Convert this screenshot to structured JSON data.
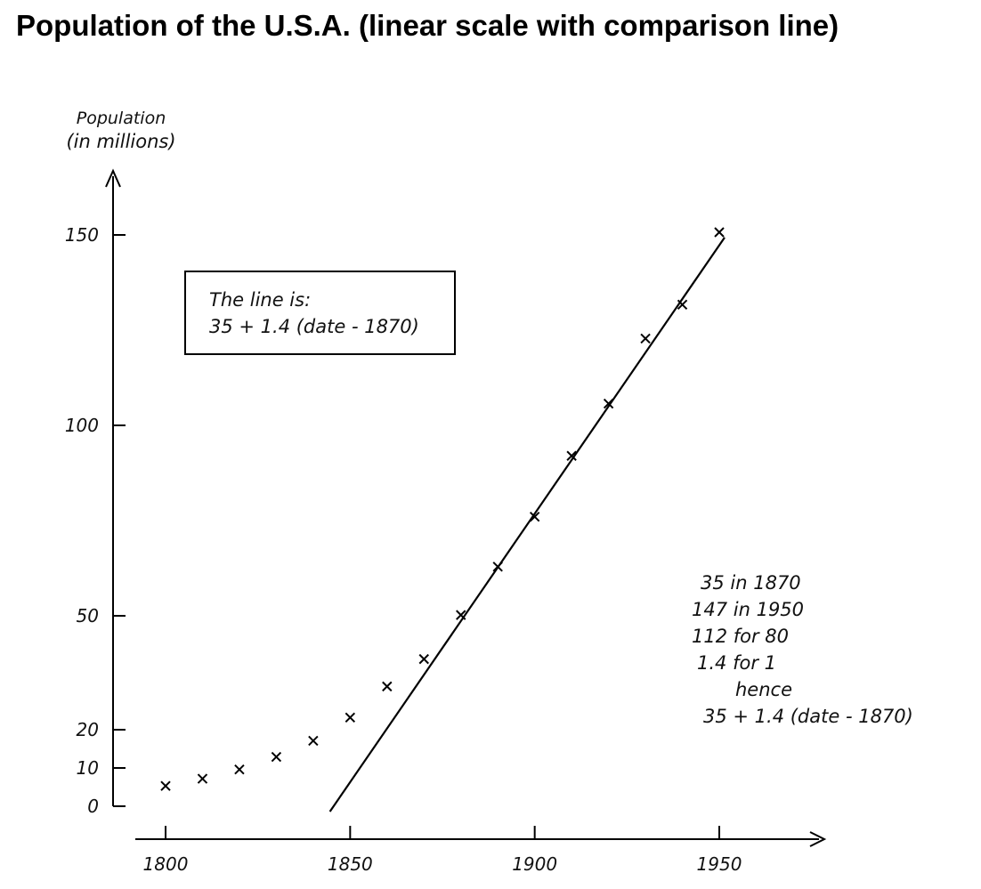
{
  "chart_data": {
    "type": "scatter",
    "title": "Population of the U.S.A. (linear scale with comparison line)",
    "ylabel": [
      "Population",
      "(in millions)"
    ],
    "xlabel": "",
    "x_ticks": [
      1800,
      1850,
      1900,
      1950
    ],
    "y_ticks": [
      0,
      10,
      20,
      50,
      100,
      150
    ],
    "xlim": [
      1795,
      1980
    ],
    "ylim": [
      0,
      170
    ],
    "grid": false,
    "legend": "none",
    "points": [
      {
        "x": 1800,
        "y": 5.3
      },
      {
        "x": 1810,
        "y": 7.2
      },
      {
        "x": 1820,
        "y": 9.6
      },
      {
        "x": 1830,
        "y": 12.9
      },
      {
        "x": 1840,
        "y": 17.1
      },
      {
        "x": 1850,
        "y": 23.2
      },
      {
        "x": 1860,
        "y": 31.4
      },
      {
        "x": 1870,
        "y": 38.6
      },
      {
        "x": 1880,
        "y": 50.2
      },
      {
        "x": 1890,
        "y": 62.9
      },
      {
        "x": 1900,
        "y": 76.0
      },
      {
        "x": 1910,
        "y": 92.0
      },
      {
        "x": 1920,
        "y": 105.7
      },
      {
        "x": 1930,
        "y": 122.8
      },
      {
        "x": 1940,
        "y": 131.7
      },
      {
        "x": 1950,
        "y": 150.7
      }
    ],
    "comparison_line": {
      "x": [
        1845,
        1950
      ],
      "y": [
        0,
        147
      ]
    },
    "box_annotation": [
      "The line is:",
      "35 + 1.4 (date - 1870)"
    ],
    "side_annotation": [
      "35 in 1870",
      "147 in 1950",
      "112 for 80",
      "1.4 for 1",
      "hence",
      "35 + 1.4 (date - 1870)"
    ]
  }
}
